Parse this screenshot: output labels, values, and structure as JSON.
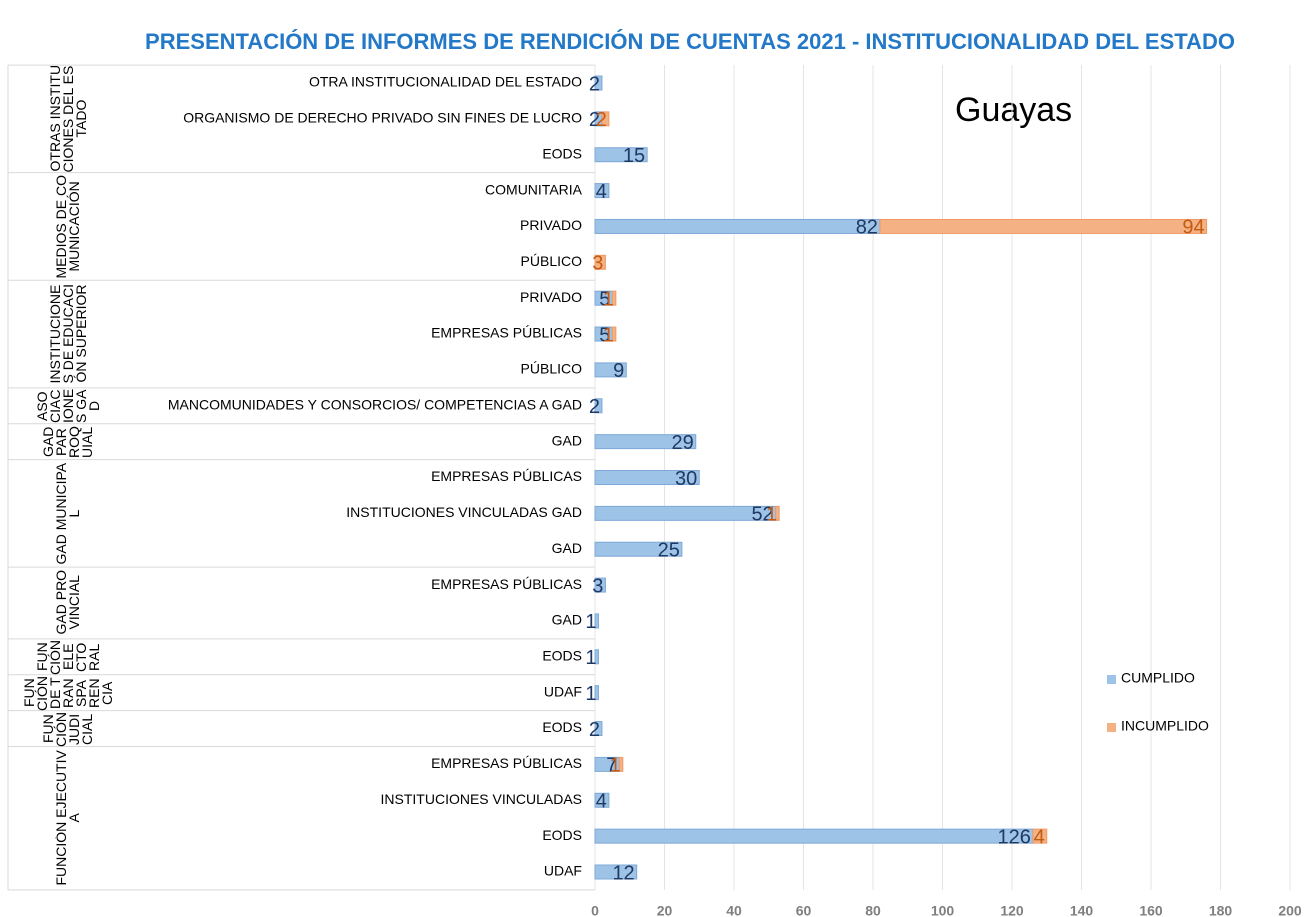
{
  "chart_data": {
    "type": "stacked-barh",
    "title": "PRESENTACIÓN DE INFORMES DE RENDICIÓN DE CUENTAS 2021 - INSTITUCIONALIDAD DEL ESTADO",
    "annotation": "Guayas",
    "groups": [
      {
        "name": "OTRAS INSTITUCIONES DEL ESTADO",
        "categories": [
          "OTRA INSTITUCIONALIDAD DEL ESTADO",
          "ORGANISMO DE DERECHO PRIVADO SIN FINES DE LUCRO",
          "EODS"
        ]
      },
      {
        "name": "MEDIOS DE COMUNICACIÓN",
        "categories": [
          "COMUNITARIA",
          "PRIVADO",
          "PÚBLICO"
        ]
      },
      {
        "name": "INSTITUCIONES DE EDUCACIÓN SUPERIOR",
        "categories": [
          "PRIVADO",
          "EMPRESAS PÚBLICAS",
          "PÚBLICO"
        ]
      },
      {
        "name": "ASOCIACIONES GAD",
        "categories": [
          "MANCOMUNIDADES Y  CONSORCIOS/ COMPETENCIAS A GAD"
        ]
      },
      {
        "name": "GAD PARROQUIAL",
        "categories": [
          "GAD"
        ]
      },
      {
        "name": "GAD MUNICIPAL",
        "categories": [
          "EMPRESAS PÚBLICAS",
          "INSTITUCIONES VINCULADAS GAD",
          "GAD"
        ]
      },
      {
        "name": "GAD PROVINCIAL",
        "categories": [
          "EMPRESAS PÚBLICAS",
          "GAD"
        ]
      },
      {
        "name": "FUNCIÓN ELECTORAL",
        "categories": [
          "EODS"
        ]
      },
      {
        "name": "FUNCIÓN DE TRANSPARENCIA",
        "categories": [
          "UDAF"
        ]
      },
      {
        "name": "FUNCIÓN JUDICIAL",
        "categories": [
          "EODS"
        ]
      },
      {
        "name": "FUNCIÓN EJECUTIVA",
        "categories": [
          "EMPRESAS PÚBLICAS",
          "INSTITUCIONES VINCULADAS",
          "EODS",
          "UDAF"
        ]
      }
    ],
    "series": [
      {
        "name": "CUMPLIDO",
        "color": "#9dc3e6",
        "label_color": "#1f3864",
        "values": [
          2,
          2,
          15,
          4,
          82,
          null,
          5,
          5,
          9,
          2,
          29,
          30,
          52,
          25,
          3,
          1,
          1,
          1,
          2,
          7,
          4,
          126,
          12
        ]
      },
      {
        "name": "INCUMPLIDO",
        "color": "#f4b183",
        "label_color": "#c55a11",
        "values": [
          null,
          2,
          null,
          null,
          94,
          3,
          1,
          1,
          null,
          null,
          null,
          null,
          1,
          null,
          null,
          null,
          null,
          null,
          null,
          1,
          null,
          4,
          null
        ]
      }
    ],
    "xlim": [
      0,
      200
    ],
    "xticks": [
      0,
      20,
      40,
      60,
      80,
      100,
      120,
      140,
      160,
      180,
      200
    ],
    "grid": true,
    "legend": "right"
  }
}
